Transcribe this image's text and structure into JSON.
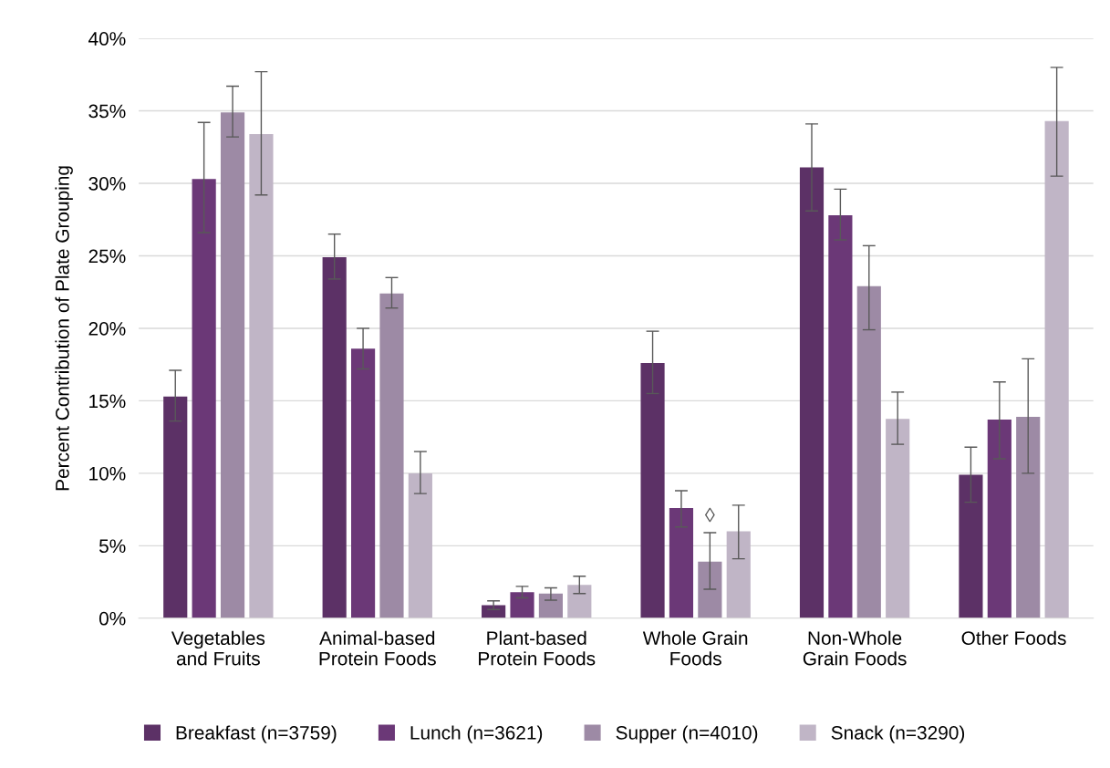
{
  "chart_data": {
    "type": "bar",
    "ylabel": "Percent Contribution of Plate Grouping",
    "categories": [
      "Vegetables\nand Fruits",
      "Animal-based\nProtein Foods",
      "Plant-based\nProtein Foods",
      "Whole Grain\nFoods",
      "Non-Whole\nGrain Foods",
      "Other Foods"
    ],
    "series": [
      {
        "name": "Breakfast (n=3759)",
        "color": "#5c3166",
        "values": [
          15.3,
          24.9,
          0.9,
          17.6,
          31.1,
          9.9
        ],
        "errors": [
          [
            13.6,
            17.1
          ],
          [
            23.4,
            26.5
          ],
          [
            0.6,
            1.2
          ],
          [
            15.5,
            19.8
          ],
          [
            28.1,
            34.1
          ],
          [
            8.0,
            11.8
          ]
        ]
      },
      {
        "name": "Lunch (n=3621)",
        "color": "#6b3877",
        "values": [
          30.3,
          18.6,
          1.8,
          7.6,
          27.8,
          13.7
        ],
        "errors": [
          [
            26.6,
            34.2
          ],
          [
            17.2,
            20.0
          ],
          [
            1.4,
            2.2
          ],
          [
            6.3,
            8.8
          ],
          [
            26.1,
            29.6
          ],
          [
            11.0,
            16.3
          ]
        ]
      },
      {
        "name": "Supper (n=4010)",
        "color": "#9d8aa5",
        "values": [
          34.9,
          22.4,
          1.7,
          3.9,
          22.9,
          13.9
        ],
        "errors": [
          [
            33.2,
            36.7
          ],
          [
            21.4,
            23.5
          ],
          [
            1.25,
            2.1
          ],
          [
            2.0,
            5.9
          ],
          [
            19.9,
            25.7
          ],
          [
            10.0,
            17.9
          ]
        ]
      },
      {
        "name": "Snack (n=3290)",
        "color": "#c0b5c6",
        "values": [
          33.4,
          10.0,
          2.3,
          6.0,
          13.75,
          34.3
        ],
        "errors": [
          [
            29.2,
            37.7
          ],
          [
            8.6,
            11.5
          ],
          [
            1.7,
            2.9
          ],
          [
            4.1,
            7.8
          ],
          [
            12.0,
            15.6
          ],
          [
            30.5,
            38.0
          ]
        ]
      }
    ],
    "annotations": [
      {
        "text": "◊",
        "x": "Whole Grain\nFoods",
        "y": 7.0
      }
    ],
    "ylim": [
      0,
      40
    ],
    "yticks": [
      {
        "value": 0,
        "label": "0%"
      },
      {
        "value": 5,
        "label": "5%"
      },
      {
        "value": 10,
        "label": "10%"
      },
      {
        "value": 15,
        "label": "15%"
      },
      {
        "value": 20,
        "label": "20%"
      },
      {
        "value": 25,
        "label": "25%"
      },
      {
        "value": 30,
        "label": "30%"
      },
      {
        "value": 35,
        "label": "35%"
      },
      {
        "value": 40,
        "label": "40%"
      }
    ],
    "grid": "y",
    "legend": "bottom"
  }
}
